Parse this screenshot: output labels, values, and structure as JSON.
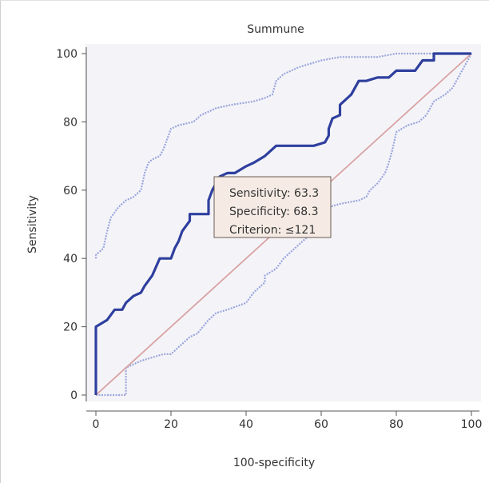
{
  "chart_data": {
    "type": "line",
    "title": "Summune",
    "xlabel": "100-specificity",
    "ylabel": "Sensitivity",
    "xlim": [
      0,
      100
    ],
    "ylim": [
      0,
      100
    ],
    "xticks": [
      "0",
      "20",
      "40",
      "60",
      "80",
      "100"
    ],
    "yticks": [
      "0",
      "20",
      "40",
      "60",
      "80",
      "100"
    ],
    "annotation": [
      "Sensitivity: 63.3",
      "Specificity: 68.3",
      "Criterion: ≤121"
    ],
    "colors": {
      "roc": "#2f3f9e",
      "ci": "#9aa4dd",
      "diagonal": "#d9a3a3",
      "plot_bg": "#f4f4f8",
      "annot_bg": "#f5ebe4",
      "annot_border": "#6a5a50"
    },
    "series": [
      {
        "values": [
          [
            0,
            0
          ],
          [
            0,
            20
          ],
          [
            3,
            22
          ],
          [
            5,
            25
          ],
          [
            7,
            25
          ],
          [
            8,
            27
          ],
          [
            10,
            29
          ],
          [
            12,
            30
          ],
          [
            13,
            32
          ],
          [
            15,
            35
          ],
          [
            17,
            40
          ],
          [
            20,
            40
          ],
          [
            21,
            43
          ],
          [
            22,
            45
          ],
          [
            23,
            48
          ],
          [
            25,
            51
          ],
          [
            25,
            53
          ],
          [
            28,
            53
          ],
          [
            30,
            53
          ],
          [
            30,
            57
          ],
          [
            31,
            60
          ],
          [
            32,
            62
          ],
          [
            33,
            64
          ],
          [
            35,
            65
          ],
          [
            37,
            65
          ],
          [
            40,
            67
          ],
          [
            42,
            68
          ],
          [
            45,
            70
          ],
          [
            48,
            73
          ],
          [
            53,
            73
          ],
          [
            58,
            73
          ],
          [
            61,
            74
          ],
          [
            62,
            76
          ],
          [
            62,
            78
          ],
          [
            63,
            81
          ],
          [
            65,
            82
          ],
          [
            65,
            85
          ],
          [
            67,
            87
          ],
          [
            68,
            88
          ],
          [
            70,
            92
          ],
          [
            72,
            92
          ],
          [
            75,
            93
          ],
          [
            78,
            93
          ],
          [
            80,
            95
          ],
          [
            85,
            95
          ],
          [
            87,
            98
          ],
          [
            90,
            98
          ],
          [
            90,
            100
          ],
          [
            100,
            100
          ]
        ]
      },
      {
        "values": [
          [
            0,
            40
          ],
          [
            0,
            41
          ],
          [
            2,
            43
          ],
          [
            3,
            48
          ],
          [
            4,
            52
          ],
          [
            6,
            55
          ],
          [
            8,
            57
          ],
          [
            10,
            58
          ],
          [
            12,
            60
          ],
          [
            13,
            65
          ],
          [
            14,
            68
          ],
          [
            15,
            69
          ],
          [
            17,
            70
          ],
          [
            18,
            72
          ],
          [
            19,
            75
          ],
          [
            20,
            78
          ],
          [
            22,
            79
          ],
          [
            26,
            80
          ],
          [
            28,
            82
          ],
          [
            32,
            84
          ],
          [
            36,
            85
          ],
          [
            42,
            86
          ],
          [
            45,
            87
          ],
          [
            47,
            88
          ],
          [
            48,
            92
          ],
          [
            50,
            94
          ],
          [
            52,
            95
          ],
          [
            54,
            96
          ],
          [
            57,
            97
          ],
          [
            60,
            98
          ],
          [
            65,
            99
          ],
          [
            75,
            99
          ],
          [
            80,
            100
          ],
          [
            100,
            100
          ]
        ]
      },
      {
        "values": [
          [
            0,
            0
          ],
          [
            8,
            0
          ],
          [
            8,
            8
          ],
          [
            10,
            9
          ],
          [
            12,
            10
          ],
          [
            15,
            11
          ],
          [
            18,
            12
          ],
          [
            20,
            12
          ],
          [
            22,
            14
          ],
          [
            25,
            17
          ],
          [
            27,
            18
          ],
          [
            30,
            22
          ],
          [
            32,
            24
          ],
          [
            35,
            25
          ],
          [
            40,
            27
          ],
          [
            42,
            30
          ],
          [
            45,
            33
          ],
          [
            45,
            35
          ],
          [
            48,
            37
          ],
          [
            50,
            40
          ],
          [
            53,
            43
          ],
          [
            56,
            46
          ],
          [
            58,
            49
          ],
          [
            60,
            52
          ],
          [
            62,
            55
          ],
          [
            65,
            56
          ],
          [
            70,
            57
          ],
          [
            72,
            58
          ],
          [
            73,
            60
          ],
          [
            75,
            62
          ],
          [
            77,
            65
          ],
          [
            78,
            68
          ],
          [
            79,
            72
          ],
          [
            80,
            77
          ],
          [
            83,
            79
          ],
          [
            86,
            80
          ],
          [
            88,
            82
          ],
          [
            90,
            86
          ],
          [
            93,
            88
          ],
          [
            95,
            90
          ],
          [
            98,
            96
          ],
          [
            100,
            100
          ]
        ]
      },
      {
        "values": [
          [
            0,
            0
          ],
          [
            100,
            100
          ]
        ]
      }
    ]
  }
}
